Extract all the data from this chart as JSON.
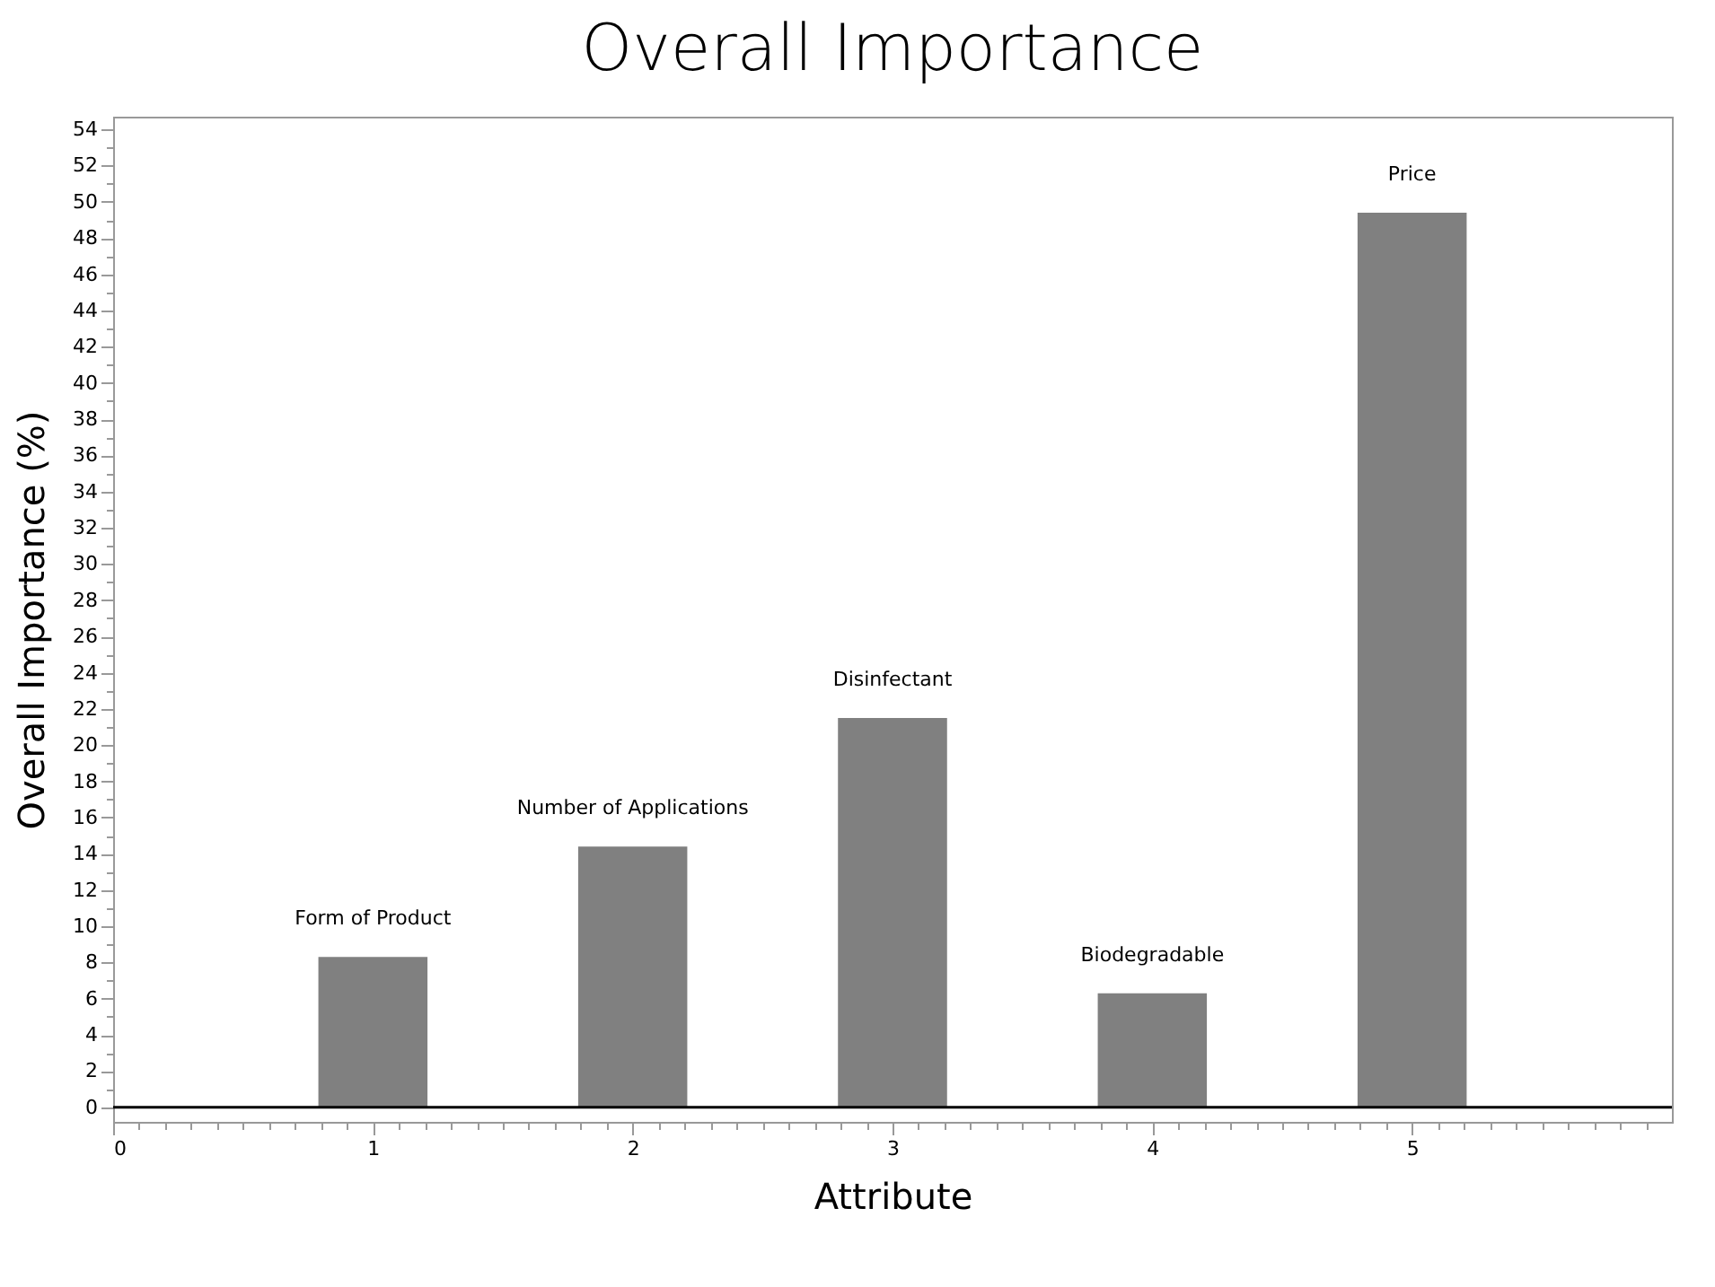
{
  "chart_data": {
    "type": "bar",
    "title": "Overall Importance",
    "xlabel": "Attribute",
    "ylabel": "Overall Importance (%)",
    "x": [
      1,
      2,
      3,
      4,
      5
    ],
    "values": [
      8.3,
      14.4,
      21.5,
      6.3,
      49.4
    ],
    "color": "#808080",
    "xlim": [
      0,
      6.0
    ],
    "xticks": [
      0,
      {
        "value": 0.1,
        "label": null
      },
      {
        "value": 0.2,
        "label": null
      },
      {
        "value": 0.3,
        "label": null
      },
      {
        "value": 0.4,
        "label": null
      },
      {
        "value": 0.5,
        "label": null
      },
      {
        "value": 0.6,
        "label": null
      },
      {
        "value": 0.7,
        "label": null
      },
      {
        "value": 0.8,
        "label": null
      },
      {
        "value": 0.9,
        "label": null
      },
      1,
      {
        "value": 1.1,
        "label": null
      },
      {
        "value": 1.2,
        "label": null
      },
      {
        "value": 1.3,
        "label": null
      },
      {
        "value": 1.4,
        "label": null
      },
      {
        "value": 1.5,
        "label": null
      },
      {
        "value": 1.6,
        "label": null
      },
      {
        "value": 1.7,
        "label": null
      },
      {
        "value": 1.8,
        "label": null
      },
      {
        "value": 1.9,
        "label": null
      },
      2,
      {
        "value": 2.1,
        "label": null
      },
      {
        "value": 2.2,
        "label": null
      },
      {
        "value": 2.3,
        "label": null
      },
      {
        "value": 2.4,
        "label": null
      },
      {
        "value": 2.5,
        "label": null
      },
      {
        "value": 2.6,
        "label": null
      },
      {
        "value": 2.7,
        "label": null
      },
      {
        "value": 2.8,
        "label": null
      },
      {
        "value": 2.9,
        "label": null
      },
      3,
      {
        "value": 3.1,
        "label": null
      },
      {
        "value": 3.2,
        "label": null
      },
      {
        "value": 3.3,
        "label": null
      },
      {
        "value": 3.4,
        "label": null
      },
      {
        "value": 3.5,
        "label": null
      },
      {
        "value": 3.6,
        "label": null
      },
      {
        "value": 3.7,
        "label": null
      },
      {
        "value": 3.8,
        "label": null
      },
      {
        "value": 3.9,
        "label": null
      },
      4,
      {
        "value": 4.1,
        "label": null
      },
      {
        "value": 4.2,
        "label": null
      },
      {
        "value": 4.3,
        "label": null
      },
      {
        "value": 4.4,
        "label": null
      },
      {
        "value": 4.5,
        "label": null
      },
      {
        "value": 4.6,
        "label": null
      },
      {
        "value": 4.7,
        "label": null
      },
      {
        "value": 4.8,
        "label": null
      },
      {
        "value": 4.9,
        "label": null
      },
      5,
      {
        "value": 5.1,
        "label": null
      },
      {
        "value": 5.2,
        "label": null
      },
      {
        "value": 5.3,
        "label": null
      },
      {
        "value": 5.4,
        "label": null
      },
      {
        "value": 5.5,
        "label": null
      },
      {
        "value": 5.6,
        "label": null
      },
      {
        "value": 5.7,
        "label": null
      },
      {
        "value": 5.8,
        "label": null
      },
      {
        "value": 5.9,
        "label": null
      }
    ],
    "ylim": [
      -0.8,
      54.7
    ],
    "yticks": [
      0,
      {
        "value": 1,
        "label": null
      },
      2,
      {
        "value": 3,
        "label": null
      },
      4,
      {
        "value": 5,
        "label": null
      },
      6,
      {
        "value": 7,
        "label": null
      },
      8,
      {
        "value": 9,
        "label": null
      },
      10,
      {
        "value": 11,
        "label": null
      },
      12,
      {
        "value": 13,
        "label": null
      },
      14,
      {
        "value": 15,
        "label": null
      },
      16,
      {
        "value": 17,
        "label": null
      },
      18,
      {
        "value": 19,
        "label": null
      },
      20,
      {
        "value": 21,
        "label": null
      },
      22,
      {
        "value": 23,
        "label": null
      },
      24,
      {
        "value": 25,
        "label": null
      },
      26,
      {
        "value": 27,
        "label": null
      },
      28,
      {
        "value": 29,
        "label": null
      },
      30,
      {
        "value": 31,
        "label": null
      },
      32,
      {
        "value": 33,
        "label": null
      },
      34,
      {
        "value": 35,
        "label": null
      },
      36,
      {
        "value": 37,
        "label": null
      },
      38,
      {
        "value": 39,
        "label": null
      },
      40,
      {
        "value": 41,
        "label": null
      },
      42,
      {
        "value": 43,
        "label": null
      },
      44,
      {
        "value": 45,
        "label": null
      },
      46,
      {
        "value": 47,
        "label": null
      },
      48,
      {
        "value": 49,
        "label": null
      },
      50,
      {
        "value": 51,
        "label": null
      },
      52,
      {
        "value": 53,
        "label": null
      },
      54
    ],
    "ref_lines": [
      {
        "axis": "y",
        "value": 0,
        "color": "#000000"
      }
    ],
    "annotations": [
      "Form of Product",
      "Number of Applications",
      "Disinfectant",
      "Biodegradable",
      "Price"
    ]
  }
}
